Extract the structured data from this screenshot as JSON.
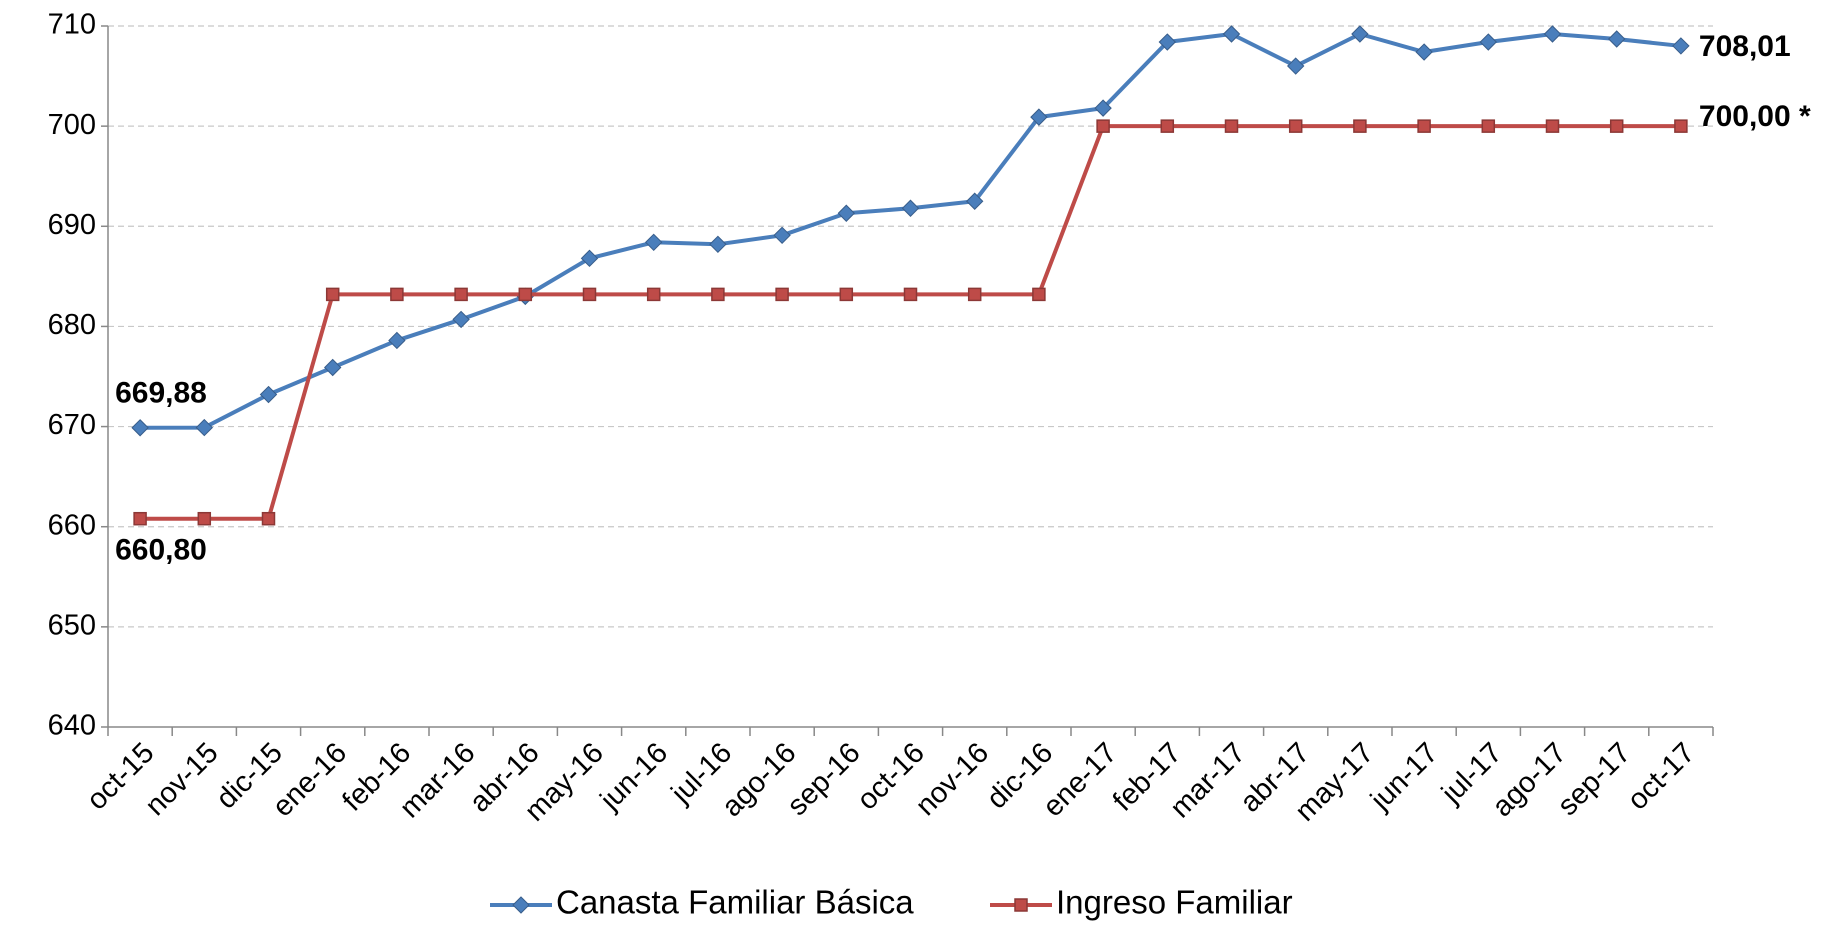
{
  "chart_data": {
    "type": "line",
    "categories": [
      "oct-15",
      "nov-15",
      "dic-15",
      "ene-16",
      "feb-16",
      "mar-16",
      "abr-16",
      "may-16",
      "jun-16",
      "jul-16",
      "ago-16",
      "sep-16",
      "oct-16",
      "nov-16",
      "dic-16",
      "ene-17",
      "feb-17",
      "mar-17",
      "abr-17",
      "may-17",
      "jun-17",
      "jul-17",
      "ago-17",
      "sep-17",
      "oct-17"
    ],
    "series": [
      {
        "name": "Canasta Familiar Básica",
        "color": "#4a7ebb",
        "marker": "diamond",
        "values": [
          669.88,
          669.9,
          673.2,
          675.9,
          678.6,
          680.7,
          683.0,
          686.8,
          688.4,
          688.2,
          689.1,
          691.3,
          691.8,
          692.5,
          700.9,
          701.8,
          708.4,
          709.2,
          706.0,
          709.2,
          707.4,
          708.4,
          709.2,
          708.7,
          708.01
        ],
        "value_labels": [
          "669,88",
          null,
          null,
          null,
          null,
          null,
          null,
          null,
          null,
          null,
          null,
          null,
          null,
          null,
          null,
          null,
          null,
          null,
          null,
          null,
          null,
          null,
          null,
          null,
          "708,01"
        ]
      },
      {
        "name": "Ingreso Familiar",
        "color": "#be4b48",
        "marker": "square",
        "values": [
          660.8,
          660.8,
          660.8,
          683.2,
          683.2,
          683.2,
          683.2,
          683.2,
          683.2,
          683.2,
          683.2,
          683.2,
          683.2,
          683.2,
          683.2,
          700,
          700,
          700,
          700,
          700,
          700,
          700,
          700,
          700,
          700
        ],
        "value_labels": [
          "660,80",
          null,
          null,
          null,
          null,
          null,
          null,
          null,
          null,
          null,
          null,
          null,
          null,
          null,
          null,
          null,
          null,
          null,
          null,
          null,
          null,
          null,
          null,
          null,
          "700,00 *"
        ]
      }
    ],
    "ylim": [
      640,
      710
    ],
    "yticks": [
      640,
      650,
      660,
      670,
      680,
      690,
      700,
      710
    ],
    "grid": true,
    "legend": "bottom"
  }
}
